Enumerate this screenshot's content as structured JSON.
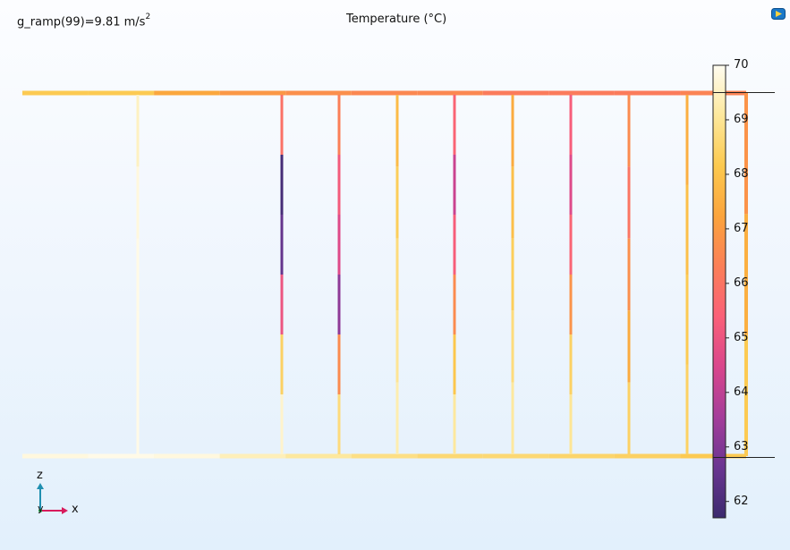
{
  "header": {
    "parameter_prefix": "g_ramp(99)=9.81 m/s",
    "parameter_exponent": "2",
    "title": "Temperature (°C)"
  },
  "colorbar": {
    "min": 61.7,
    "max": 70.0,
    "ticks": [
      "70",
      "69",
      "68",
      "67",
      "66",
      "65",
      "64",
      "63",
      "62"
    ],
    "colormap": [
      "#3b2a6e",
      "#6a3591",
      "#a43d9a",
      "#d9468c",
      "#fa6078",
      "#fb7f57",
      "#fba43c",
      "#fcc94e",
      "#fde89c",
      "#fffcf0"
    ]
  },
  "axes": {
    "z": "z",
    "x": "x",
    "y": "y"
  },
  "icons": {
    "logo": "comsol-logo-icon"
  },
  "structure": {
    "top_pipe_temps": [
      68.2,
      68.2,
      67.3,
      66.9,
      66.7,
      66.5,
      66.5,
      66.2,
      66.2,
      66.2,
      66.4
    ],
    "bottom_pipe_temps": [
      69.8,
      69.9,
      69.8,
      69.4,
      69.1,
      68.8,
      68.6,
      68.6,
      68.5,
      68.4,
      68.2
    ],
    "right_pipe_temps": [
      66.8,
      67.5,
      68.2
    ],
    "risers": [
      {
        "temps": [
          69.5,
          69.8,
          69.9,
          69.9,
          69.9
        ]
      },
      {
        "temps": [
          65.9,
          61.9,
          62.5,
          65.0,
          68.4,
          69.6
        ]
      },
      {
        "temps": [
          66.3,
          65.2,
          64.6,
          63.2,
          66.6,
          68.7
        ]
      },
      {
        "temps": [
          67.8,
          68.3,
          68.7,
          69.0,
          69.3
        ]
      },
      {
        "temps": [
          65.5,
          64.2,
          65.3,
          66.6,
          68.1,
          69.1
        ]
      },
      {
        "temps": [
          67.4,
          67.9,
          68.3,
          68.7,
          69.1
        ]
      },
      {
        "temps": [
          65.3,
          64.6,
          65.5,
          66.8,
          68.4,
          69.0
        ]
      },
      {
        "temps": [
          66.6,
          66.0,
          66.7,
          67.4,
          68.4
        ]
      },
      {
        "temps": [
          67.5,
          67.9,
          68.2,
          68.4
        ]
      }
    ]
  }
}
